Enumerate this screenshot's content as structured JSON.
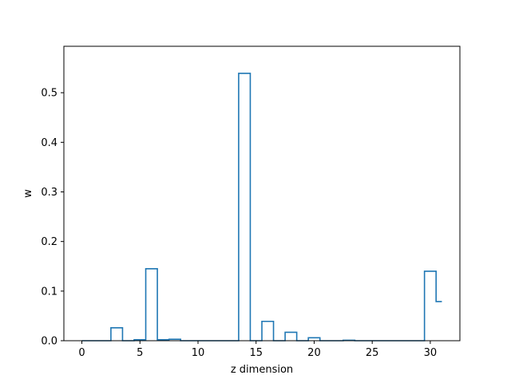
{
  "chart_data": {
    "type": "step",
    "title": "",
    "xlabel": "z dimension",
    "ylabel": "w",
    "xlim": [
      -1.55,
      32.55
    ],
    "ylim": [
      0,
      0.5936
    ],
    "x_ticks": [
      0,
      5,
      10,
      15,
      20,
      25,
      30
    ],
    "x_tick_labels": [
      "0",
      "5",
      "10",
      "15",
      "20",
      "25",
      "30"
    ],
    "y_ticks": [
      0.0,
      0.1,
      0.2,
      0.3,
      0.4,
      0.5
    ],
    "y_tick_labels": [
      "0.0",
      "0.1",
      "0.2",
      "0.3",
      "0.4",
      "0.5"
    ],
    "grid": false,
    "series": [
      {
        "x": [
          0,
          1,
          2,
          3,
          4,
          5,
          6,
          7,
          8,
          9,
          10,
          11,
          12,
          13,
          14,
          15,
          16,
          17,
          18,
          19,
          20,
          21,
          22,
          23,
          24,
          25,
          26,
          27,
          28,
          29,
          30,
          31
        ],
        "values": [
          0.0,
          0.0,
          0.0,
          0.026,
          0.0,
          0.002,
          0.145,
          0.002,
          0.003,
          0.0,
          0.0,
          0.0,
          0.0,
          0.0,
          0.539,
          0.0,
          0.039,
          0.0,
          0.017,
          0.0,
          0.006,
          0.0,
          0.0,
          0.001,
          0.0,
          0.0,
          0.0,
          0.0,
          0.0,
          0.0,
          0.14,
          0.079
        ]
      }
    ],
    "colors": {
      "line": "#1f77b4",
      "axes": "#000000"
    }
  }
}
